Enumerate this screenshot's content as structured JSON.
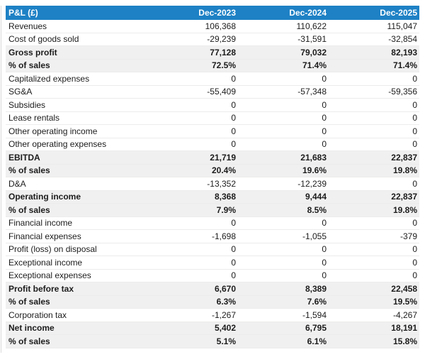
{
  "chart_data": {
    "type": "table",
    "title": "P&L (£)",
    "columns": [
      "Dec-2023",
      "Dec-2024",
      "Dec-2025"
    ],
    "rows": [
      {
        "label": "Revenues",
        "values": [
          "106,368",
          "110,622",
          "115,047"
        ],
        "emphasis": false
      },
      {
        "label": "Cost of goods sold",
        "values": [
          "-29,239",
          "-31,591",
          "-32,854"
        ],
        "emphasis": false
      },
      {
        "label": "Gross profit",
        "values": [
          "77,128",
          "79,032",
          "82,193"
        ],
        "emphasis": true
      },
      {
        "label": "% of sales",
        "values": [
          "72.5%",
          "71.4%",
          "71.4%"
        ],
        "emphasis": true
      },
      {
        "label": "Capitalized expenses",
        "values": [
          "0",
          "0",
          "0"
        ],
        "emphasis": false
      },
      {
        "label": "SG&A",
        "values": [
          "-55,409",
          "-57,348",
          "-59,356"
        ],
        "emphasis": false
      },
      {
        "label": "Subsidies",
        "values": [
          "0",
          "0",
          "0"
        ],
        "emphasis": false
      },
      {
        "label": "Lease rentals",
        "values": [
          "0",
          "0",
          "0"
        ],
        "emphasis": false
      },
      {
        "label": "Other operating income",
        "values": [
          "0",
          "0",
          "0"
        ],
        "emphasis": false
      },
      {
        "label": "Other operating expenses",
        "values": [
          "0",
          "0",
          "0"
        ],
        "emphasis": false
      },
      {
        "label": "EBITDA",
        "values": [
          "21,719",
          "21,683",
          "22,837"
        ],
        "emphasis": true
      },
      {
        "label": "% of sales",
        "values": [
          "20.4%",
          "19.6%",
          "19.8%"
        ],
        "emphasis": true
      },
      {
        "label": "D&A",
        "values": [
          "-13,352",
          "-12,239",
          "0"
        ],
        "emphasis": false
      },
      {
        "label": "Operating income",
        "values": [
          "8,368",
          "9,444",
          "22,837"
        ],
        "emphasis": true
      },
      {
        "label": "% of sales",
        "values": [
          "7.9%",
          "8.5%",
          "19.8%"
        ],
        "emphasis": true
      },
      {
        "label": "Financial income",
        "values": [
          "0",
          "0",
          "0"
        ],
        "emphasis": false
      },
      {
        "label": "Financial expenses",
        "values": [
          "-1,698",
          "-1,055",
          "-379"
        ],
        "emphasis": false
      },
      {
        "label": "Profit (loss) on disposal",
        "values": [
          "0",
          "0",
          "0"
        ],
        "emphasis": false
      },
      {
        "label": "Exceptional income",
        "values": [
          "0",
          "0",
          "0"
        ],
        "emphasis": false
      },
      {
        "label": "Exceptional expenses",
        "values": [
          "0",
          "0",
          "0"
        ],
        "emphasis": false
      },
      {
        "label": "Profit before tax",
        "values": [
          "6,670",
          "8,389",
          "22,458"
        ],
        "emphasis": true
      },
      {
        "label": "% of sales",
        "values": [
          "6.3%",
          "7.6%",
          "19.5%"
        ],
        "emphasis": true
      },
      {
        "label": "Corporation tax",
        "values": [
          "-1,267",
          "-1,594",
          "-4,267"
        ],
        "emphasis": false
      },
      {
        "label": "Net income",
        "values": [
          "5,402",
          "6,795",
          "18,191"
        ],
        "emphasis": true
      },
      {
        "label": "% of sales",
        "values": [
          "5.1%",
          "6.1%",
          "15.8%"
        ],
        "emphasis": true
      }
    ]
  },
  "colors": {
    "header_bg": "#1e81c5",
    "header_text": "#ffffff",
    "emphasis_bg": "#f0f0f1",
    "row_border": "#ececec",
    "text": "#1c1c1c",
    "page_border": "#d9d9d9"
  }
}
